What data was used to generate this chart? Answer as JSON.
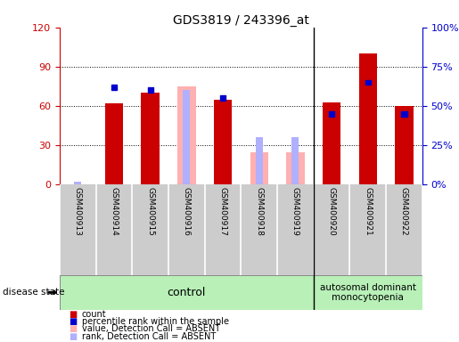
{
  "title": "GDS3819 / 243396_at",
  "samples": [
    "GSM400913",
    "GSM400914",
    "GSM400915",
    "GSM400916",
    "GSM400917",
    "GSM400918",
    "GSM400919",
    "GSM400920",
    "GSM400921",
    "GSM400922"
  ],
  "red_values": [
    0,
    62,
    70,
    0,
    65,
    0,
    0,
    63,
    100,
    60
  ],
  "blue_pct": [
    2,
    62,
    60,
    0,
    55,
    0,
    0,
    45,
    65,
    45
  ],
  "pink_values": [
    0,
    0,
    0,
    75,
    0,
    25,
    25,
    0,
    0,
    0
  ],
  "lb_pct": [
    2,
    0,
    0,
    60,
    0,
    30,
    30,
    0,
    0,
    0
  ],
  "absent": [
    true,
    false,
    false,
    true,
    false,
    true,
    true,
    false,
    false,
    false
  ],
  "ylim_left": [
    0,
    120
  ],
  "ylim_right": [
    0,
    100
  ],
  "yticks_left": [
    0,
    30,
    60,
    90,
    120
  ],
  "ytick_labels_left": [
    "0",
    "30",
    "60",
    "90",
    "120"
  ],
  "ytick_labels_right": [
    "0%",
    "25%",
    "50%",
    "75%",
    "100%"
  ],
  "yticks_right": [
    0,
    25,
    50,
    75,
    100
  ],
  "red_color": "#cc0000",
  "blue_color": "#0000cc",
  "pink_color": "#ffb0b0",
  "lightblue_color": "#b0b0ff",
  "bar_width": 0.5,
  "control_label": "control",
  "disease_label": "autosomal dominant\nmonocytopenia",
  "disease_state_label": "disease state",
  "legend_items": [
    "count",
    "percentile rank within the sample",
    "value, Detection Call = ABSENT",
    "rank, Detection Call = ABSENT"
  ],
  "control_count": 7,
  "bg_plot": "#ffffff",
  "bg_xaxis": "#cccccc",
  "bg_green": "#b8f0b8",
  "grid_dotted_color": "#000000"
}
